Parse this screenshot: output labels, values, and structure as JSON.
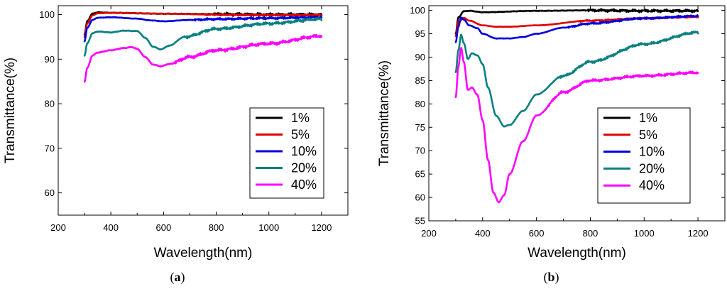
{
  "chart_data": [
    {
      "type": "line",
      "panel_label": "a",
      "xlabel": "Wavelength(nm)",
      "ylabel": "Transmittance(%)",
      "xlim": [
        200,
        1300
      ],
      "ylim": [
        55,
        102
      ],
      "xticks": [
        200,
        400,
        600,
        800,
        1000,
        1200
      ],
      "yticks": [
        60,
        70,
        80,
        90,
        100
      ],
      "legend_position": "lower-right",
      "series": [
        {
          "name": "1%",
          "color": "#000000",
          "noise": 0.35,
          "x": [
            300,
            310,
            330,
            350,
            400,
            600,
            800,
            1000,
            1200
          ],
          "y": [
            95.5,
            98.5,
            100.2,
            100.5,
            100.4,
            100.2,
            100.1,
            100.0,
            100.0
          ]
        },
        {
          "name": "5%",
          "color": "#e00000",
          "noise": 0.15,
          "x": [
            300,
            310,
            330,
            350,
            400,
            600,
            800,
            1000,
            1200
          ],
          "y": [
            95.0,
            98.0,
            99.8,
            100.3,
            100.4,
            100.2,
            100.0,
            99.9,
            99.9
          ]
        },
        {
          "name": "10%",
          "color": "#0000e0",
          "noise": 0.25,
          "x": [
            300,
            310,
            330,
            350,
            400,
            500,
            550,
            600,
            700,
            800,
            1000,
            1200
          ],
          "y": [
            94.0,
            97.0,
            98.8,
            99.3,
            99.4,
            99.1,
            98.7,
            98.5,
            98.8,
            99.0,
            99.2,
            99.4
          ]
        },
        {
          "name": "20%",
          "color": "#0a8080",
          "noise": 0.35,
          "x": [
            300,
            310,
            330,
            350,
            400,
            450,
            500,
            530,
            560,
            590,
            620,
            680,
            800,
            1000,
            1200
          ],
          "y": [
            90.8,
            93.5,
            95.8,
            96.2,
            96.0,
            96.4,
            96.3,
            94.8,
            92.8,
            92.2,
            93.0,
            95.0,
            96.8,
            98.0,
            99.0
          ]
        },
        {
          "name": "40%",
          "color": "#ff00ff",
          "noise": 0.4,
          "x": [
            300,
            310,
            330,
            350,
            400,
            450,
            480,
            500,
            530,
            560,
            590,
            620,
            700,
            800,
            1000,
            1200
          ],
          "y": [
            85.0,
            88.0,
            90.8,
            91.5,
            92.0,
            92.5,
            92.7,
            92.3,
            90.5,
            88.8,
            88.4,
            88.9,
            90.5,
            92.0,
            93.5,
            95.2
          ]
        }
      ]
    },
    {
      "type": "line",
      "panel_label": "b",
      "xlabel": "Wavelength(nm)",
      "ylabel": "Transmittance(%)",
      "xlim": [
        200,
        1300
      ],
      "ylim": [
        55,
        101
      ],
      "xticks": [
        200,
        400,
        600,
        800,
        1000,
        1200
      ],
      "yticks": [
        55,
        60,
        65,
        70,
        75,
        80,
        85,
        90,
        95,
        100
      ],
      "legend_position": "lower-right",
      "series": [
        {
          "name": "1%",
          "color": "#000000",
          "noise": 0.3,
          "x": [
            300,
            310,
            330,
            350,
            400,
            600,
            800,
            1000,
            1200
          ],
          "y": [
            95.0,
            98.5,
            99.8,
            99.9,
            99.6,
            99.9,
            100.0,
            99.9,
            99.9
          ]
        },
        {
          "name": "5%",
          "color": "#e00000",
          "noise": 0.15,
          "x": [
            300,
            310,
            330,
            350,
            400,
            450,
            500,
            600,
            800,
            1000,
            1200
          ],
          "y": [
            94.5,
            97.5,
            98.4,
            97.8,
            96.8,
            96.5,
            96.5,
            96.8,
            97.8,
            98.3,
            98.6
          ]
        },
        {
          "name": "10%",
          "color": "#0000e0",
          "noise": 0.2,
          "x": [
            300,
            310,
            320,
            330,
            350,
            380,
            400,
            450,
            500,
            550,
            600,
            700,
            800,
            1000,
            1200
          ],
          "y": [
            93.2,
            96.5,
            98.5,
            98.0,
            96.8,
            96.2,
            95.0,
            94.0,
            94.0,
            94.3,
            95.0,
            96.3,
            97.2,
            98.3,
            98.8
          ]
        },
        {
          "name": "20%",
          "color": "#0a8080",
          "noise": 0.3,
          "x": [
            300,
            310,
            320,
            330,
            345,
            360,
            380,
            400,
            420,
            450,
            480,
            500,
            550,
            600,
            700,
            800,
            1000,
            1200
          ],
          "y": [
            86.8,
            91.5,
            94.8,
            93.0,
            89.6,
            90.8,
            90.4,
            88.5,
            83.5,
            77.5,
            75.2,
            75.5,
            78.5,
            82.0,
            86.0,
            89.0,
            92.8,
            95.3
          ]
        },
        {
          "name": "40%",
          "color": "#ff00ff",
          "noise": 0.3,
          "x": [
            300,
            310,
            320,
            330,
            345,
            360,
            380,
            400,
            420,
            440,
            460,
            480,
            500,
            550,
            600,
            700,
            800,
            1000,
            1200
          ],
          "y": [
            81.5,
            88.0,
            92.0,
            89.0,
            83.0,
            83.5,
            82.0,
            76.5,
            68.0,
            61.0,
            59.0,
            60.5,
            65.0,
            72.0,
            77.5,
            82.5,
            85.0,
            86.0,
            86.7
          ]
        }
      ]
    }
  ]
}
